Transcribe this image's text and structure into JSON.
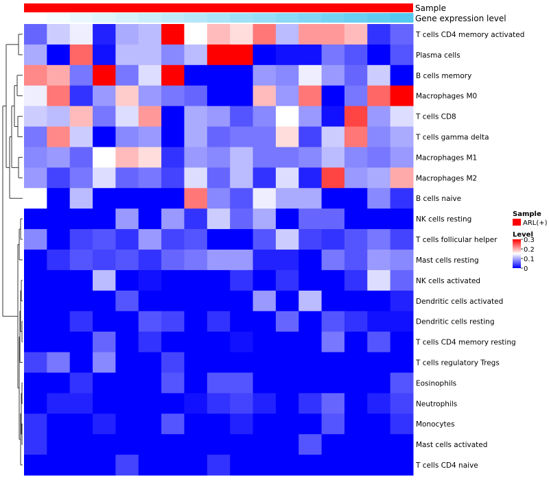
{
  "chart_data": {
    "type": "heatmap",
    "title": "",
    "xlabel": "",
    "ylabel": "",
    "annotation_tracks": [
      {
        "name": "Sample",
        "color": "#ff0000"
      },
      {
        "name": "Gene expression level",
        "low_color": "#ffffff",
        "high_color": "#55c8f0"
      }
    ],
    "rows": [
      "T cells CD4 memory activated",
      "Plasma cells",
      "B cells memory",
      "Macrophages M0",
      "T cells CD8",
      "T cells gamma delta",
      "Macrophages M1",
      "Macrophages M2",
      "B cells naive",
      "NK cells resting",
      "T cells follicular helper",
      "Mast cells resting",
      "NK cells activated",
      "Dendritic cells activated",
      "Dendritic cells resting",
      "T cells CD4 memory resting",
      "T cells regulatory  Tregs",
      "Eosinophils",
      "Neutrophils",
      "Monocytes",
      "Mast cells activated",
      "T cells CD4 naive"
    ],
    "n_columns": 17,
    "values": [
      [
        0.06,
        0.12,
        0.14,
        0.02,
        0.1,
        0.11,
        0.3,
        0.15,
        0.19,
        0.17,
        0.23,
        0.11,
        0.21,
        0.21,
        0.19,
        0.03,
        0.06
      ],
      [
        0.1,
        0.0,
        0.24,
        0.01,
        0.11,
        0.11,
        0.08,
        0.11,
        0.3,
        0.3,
        0.0,
        0.01,
        0.01,
        0.07,
        0.05,
        0.0,
        0.05
      ],
      [
        0.22,
        0.2,
        0.07,
        0.3,
        0.07,
        0.13,
        0.3,
        0.0,
        0.0,
        0.0,
        0.09,
        0.08,
        0.14,
        0.09,
        0.06,
        0.12,
        0.0
      ],
      [
        0.14,
        0.23,
        0.03,
        0.09,
        0.18,
        0.09,
        0.07,
        0.06,
        0.0,
        0.0,
        0.19,
        0.09,
        0.23,
        0.0,
        0.07,
        0.24,
        0.3
      ],
      [
        0.12,
        0.11,
        0.19,
        0.07,
        0.13,
        0.21,
        0.0,
        0.1,
        0.09,
        0.05,
        0.08,
        0.15,
        0.09,
        0.01,
        0.26,
        0.09,
        0.13
      ],
      [
        0.07,
        0.22,
        0.12,
        0.0,
        0.08,
        0.09,
        0.0,
        0.1,
        0.06,
        0.07,
        0.07,
        0.17,
        0.04,
        0.12,
        0.23,
        0.08,
        0.1
      ],
      [
        0.08,
        0.09,
        0.06,
        0.15,
        0.19,
        0.17,
        0.03,
        0.09,
        0.08,
        0.11,
        0.07,
        0.07,
        0.08,
        0.11,
        0.08,
        0.07,
        0.09
      ],
      [
        0.09,
        0.04,
        0.07,
        0.13,
        0.06,
        0.07,
        0.04,
        0.13,
        0.06,
        0.11,
        0.03,
        0.13,
        0.02,
        0.26,
        0.09,
        0.1,
        0.2
      ],
      [
        0.15,
        0.0,
        0.11,
        0.0,
        0.0,
        0.0,
        0.0,
        0.23,
        0.08,
        0.05,
        0.14,
        0.1,
        0.1,
        0.0,
        0.0,
        0.08,
        0.03
      ],
      [
        0.0,
        0.0,
        0.0,
        0.0,
        0.09,
        0.0,
        0.09,
        0.03,
        0.12,
        0.06,
        0.1,
        0.0,
        0.06,
        0.06,
        0.0,
        0.0,
        0.0
      ],
      [
        0.08,
        0.0,
        0.04,
        0.05,
        0.03,
        0.09,
        0.04,
        0.05,
        0.0,
        0.0,
        0.05,
        0.12,
        0.04,
        0.03,
        0.05,
        0.07,
        0.04
      ],
      [
        0.0,
        0.03,
        0.05,
        0.04,
        0.05,
        0.03,
        0.06,
        0.07,
        0.09,
        0.09,
        0.02,
        0.02,
        0.0,
        0.07,
        0.05,
        0.09,
        0.08
      ],
      [
        0.0,
        0.0,
        0.0,
        0.11,
        0.0,
        0.01,
        0.0,
        0.0,
        0.0,
        0.03,
        0.0,
        0.03,
        0.0,
        0.0,
        0.03,
        0.13,
        0.06
      ],
      [
        0.0,
        0.0,
        0.0,
        0.0,
        0.05,
        0.0,
        0.0,
        0.0,
        0.0,
        0.0,
        0.09,
        0.0,
        0.11,
        0.0,
        0.0,
        0.0,
        0.02
      ],
      [
        0.0,
        0.0,
        0.03,
        0.0,
        0.0,
        0.05,
        0.04,
        0.0,
        0.03,
        0.0,
        0.0,
        0.06,
        0.0,
        0.05,
        0.03,
        0.01,
        0.01
      ],
      [
        0.0,
        0.0,
        0.0,
        0.06,
        0.0,
        0.03,
        0.0,
        0.0,
        0.0,
        0.01,
        0.0,
        0.0,
        0.0,
        0.07,
        0.0,
        0.05,
        0.0
      ],
      [
        0.04,
        0.07,
        0.0,
        0.08,
        0.0,
        0.0,
        0.04,
        0.0,
        0.0,
        0.0,
        0.0,
        0.0,
        0.0,
        0.0,
        0.0,
        0.0,
        0.0
      ],
      [
        0.0,
        0.0,
        0.03,
        0.0,
        0.0,
        0.0,
        0.05,
        0.0,
        0.05,
        0.05,
        0.0,
        0.0,
        0.0,
        0.0,
        0.0,
        0.0,
        0.05
      ],
      [
        0.0,
        0.02,
        0.02,
        0.0,
        0.0,
        0.0,
        0.0,
        0.01,
        0.03,
        0.04,
        0.02,
        0.0,
        0.03,
        0.06,
        0.0,
        0.02,
        0.04
      ],
      [
        0.03,
        0.0,
        0.0,
        0.02,
        0.0,
        0.0,
        0.05,
        0.0,
        0.0,
        0.02,
        0.0,
        0.0,
        0.0,
        0.05,
        0.0,
        0.0,
        0.03
      ],
      [
        0.03,
        0.0,
        0.0,
        0.0,
        0.0,
        0.0,
        0.0,
        0.0,
        0.0,
        0.0,
        0.0,
        0.0,
        0.05,
        0.0,
        0.0,
        0.0,
        0.0
      ],
      [
        0.0,
        0.0,
        0.0,
        0.0,
        0.04,
        0.0,
        0.0,
        0.0,
        0.03,
        0.0,
        0.0,
        0.0,
        0.0,
        0.0,
        0.0,
        0.0,
        0.0
      ]
    ],
    "gene_expression_level": [
      0.05,
      0.1,
      0.15,
      0.2,
      0.25,
      0.3,
      0.35,
      0.4,
      0.45,
      0.5,
      0.55,
      0.6,
      0.65,
      0.7,
      0.75,
      0.8,
      0.85
    ],
    "color_scale": {
      "min": 0,
      "max": 0.3,
      "low": "#0000ff",
      "mid": "#ffffff",
      "high": "#ff0000"
    },
    "legend": {
      "position": "right",
      "sample": {
        "title": "Sample",
        "label": "ARL(+)",
        "color": "#ff0000"
      },
      "level": {
        "title": "Level",
        "ticks": [
          {
            "value": 0.3,
            "label": "0.3"
          },
          {
            "value": 0.2,
            "label": "0.2"
          },
          {
            "value": 0.1,
            "label": "0.1"
          },
          {
            "value": 0,
            "label": "0"
          }
        ]
      }
    },
    "dendrogram": {
      "side": "left",
      "clusters": 1
    }
  }
}
